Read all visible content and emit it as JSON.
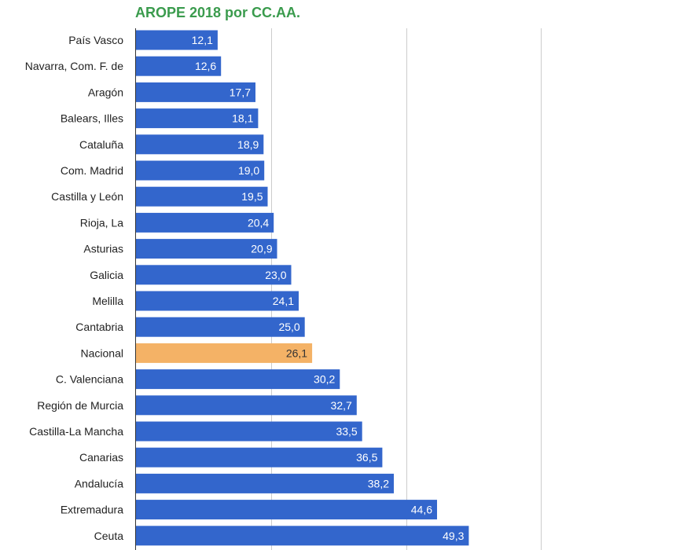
{
  "chart_data": {
    "type": "bar",
    "orientation": "horizontal",
    "title": "AROPE 2018 por CC.AA.",
    "xlabel": "",
    "ylabel": "",
    "xlim": [
      0,
      80
    ],
    "grid": true,
    "legend": "none",
    "categories": [
      "País Vasco",
      "Navarra, Com. F. de",
      "Aragón",
      "Balears, Illes",
      "Cataluña",
      "Com. Madrid",
      "Castilla y León",
      "Rioja, La",
      "Asturias",
      "Galicia",
      "Melilla",
      "Cantabria",
      "Nacional",
      "C. Valenciana",
      "Región de Murcia",
      "Castilla-La Mancha",
      "Canarias",
      "Andalucía",
      "Extremadura",
      "Ceuta"
    ],
    "values": [
      12.1,
      12.6,
      17.7,
      18.1,
      18.9,
      19.0,
      19.5,
      20.4,
      20.9,
      23.0,
      24.1,
      25.0,
      26.1,
      30.2,
      32.7,
      33.5,
      36.5,
      38.2,
      44.6,
      49.3
    ],
    "value_labels": [
      "12,1",
      "12,6",
      "17,7",
      "18,1",
      "18,9",
      "19,0",
      "19,5",
      "20,4",
      "20,9",
      "23,0",
      "24,1",
      "25,0",
      "26,1",
      "30,2",
      "32,7",
      "33,5",
      "36,5",
      "38,2",
      "44,6",
      "49,3"
    ],
    "highlight_category": "Nacional",
    "colors": {
      "bar": "#3366cc",
      "highlight": "#f4b266",
      "title": "#3a9b4d",
      "grid": "#cccccc",
      "axis": "#333333",
      "label_on_bar": "#ffffff",
      "label_on_highlight": "#333333"
    }
  }
}
